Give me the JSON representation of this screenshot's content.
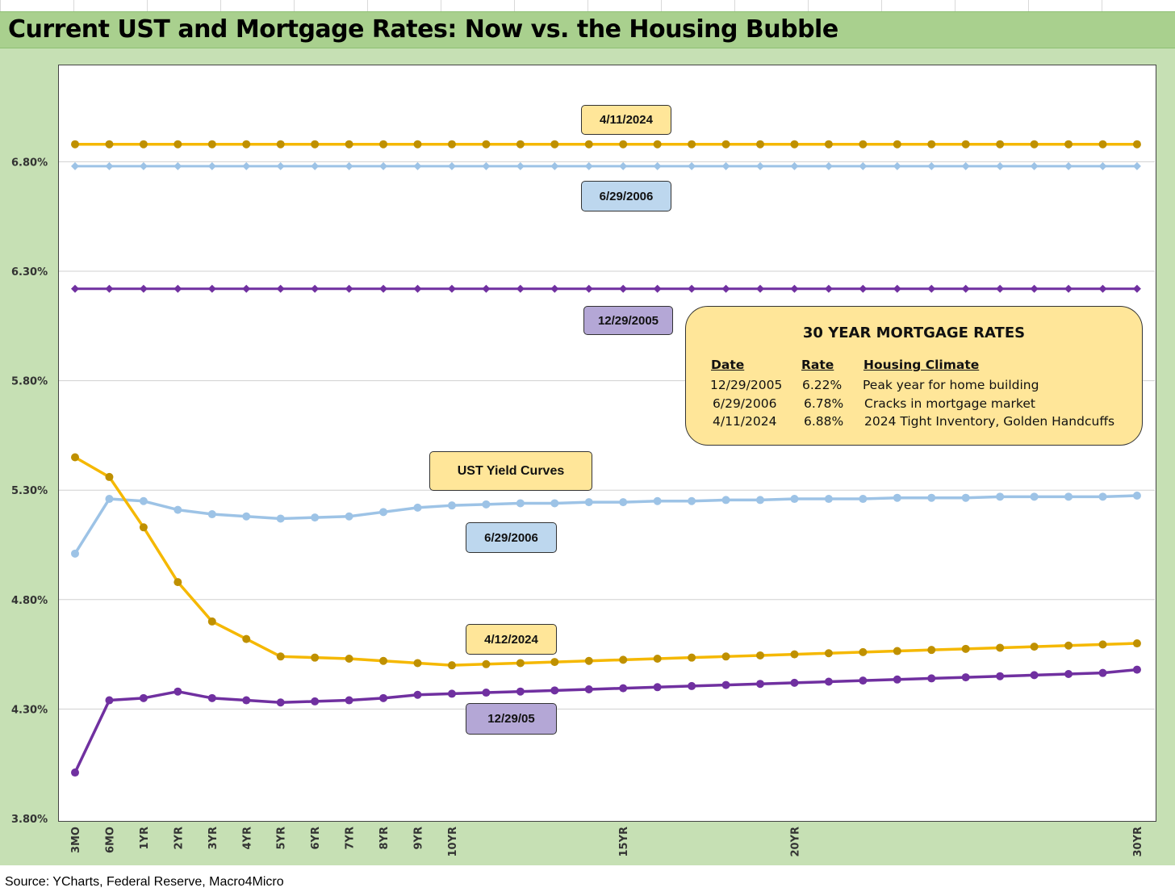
{
  "title": "Current UST and Mortgage Rates: Now vs. the Housing Bubble",
  "source": "Source: YCharts, Federal Reserve, Macro4Micro",
  "colors": {
    "title_bar": "#a9d08e",
    "panel": "#c6e0b4",
    "gold": "#f5b800",
    "gold_marker": "#bf9000",
    "light_blue": "#9dc3e6",
    "purple": "#7030a0"
  },
  "callouts": {
    "mortgage_2024": "4/11/2024",
    "mortgage_2006": "6/29/2006",
    "mortgage_2005": "12/29/2005",
    "ust_title": "UST Yield Curves",
    "ust_2006": "6/29/2006",
    "ust_2024": "4/12/2024",
    "ust_2005": "12/29/05"
  },
  "mortgage_table": {
    "title": "30 YEAR MORTGAGE RATES",
    "headers": [
      "Date",
      "Rate",
      "Housing Climate"
    ],
    "rows": [
      [
        "12/29/2005",
        "6.22%",
        "Peak year for home building"
      ],
      [
        "6/29/2006",
        "6.78%",
        "Cracks in mortgage market"
      ],
      [
        "4/11/2024",
        "6.88%",
        "2024 Tight Inventory, Golden Handcuffs"
      ]
    ]
  },
  "chart_data": {
    "type": "line",
    "title": "Current UST and Mortgage Rates: Now vs. the Housing Bubble",
    "x_tick_labels": [
      "3MO",
      "6MO",
      "1YR",
      "2YR",
      "3YR",
      "4YR",
      "5YR",
      "6YR",
      "7YR",
      "8YR",
      "9YR",
      "10YR",
      "15YR",
      "20YR",
      "30YR"
    ],
    "x_tick_positions": [
      0.25,
      0.5,
      1,
      2,
      3,
      4,
      5,
      6,
      7,
      8,
      9,
      10,
      15,
      20,
      30
    ],
    "x_note": "Category axis: 3MO, 6MO, then annual points 1YR..30YR (32 points per series)",
    "y_ticks": [
      "3.80%",
      "4.30%",
      "4.80%",
      "5.30%",
      "5.80%",
      "6.30%",
      "6.80%"
    ],
    "ylim": [
      3.8,
      7.25
    ],
    "grid": true,
    "series": [
      {
        "name": "4/11/2024",
        "color": "#f5b800",
        "marker_color": "#bf9000",
        "marker": "circle",
        "values": [
          6.88,
          6.88,
          6.88,
          6.88,
          6.88,
          6.88,
          6.88,
          6.88,
          6.88,
          6.88,
          6.88,
          6.88,
          6.88,
          6.88,
          6.88,
          6.88,
          6.88,
          6.88,
          6.88,
          6.88,
          6.88,
          6.88,
          6.88,
          6.88,
          6.88,
          6.88,
          6.88,
          6.88,
          6.88,
          6.88,
          6.88,
          6.88
        ]
      },
      {
        "name": "6/29/2006",
        "color": "#9dc3e6",
        "marker_color": "#9dc3e6",
        "marker": "diamond",
        "values": [
          6.78,
          6.78,
          6.78,
          6.78,
          6.78,
          6.78,
          6.78,
          6.78,
          6.78,
          6.78,
          6.78,
          6.78,
          6.78,
          6.78,
          6.78,
          6.78,
          6.78,
          6.78,
          6.78,
          6.78,
          6.78,
          6.78,
          6.78,
          6.78,
          6.78,
          6.78,
          6.78,
          6.78,
          6.78,
          6.78,
          6.78,
          6.78
        ]
      },
      {
        "name": "12/29/2005",
        "color": "#7030a0",
        "marker_color": "#7030a0",
        "marker": "diamond",
        "values": [
          6.22,
          6.22,
          6.22,
          6.22,
          6.22,
          6.22,
          6.22,
          6.22,
          6.22,
          6.22,
          6.22,
          6.22,
          6.22,
          6.22,
          6.22,
          6.22,
          6.22,
          6.22,
          6.22,
          6.22,
          6.22,
          6.22,
          6.22,
          6.22,
          6.22,
          6.22,
          6.22,
          6.22,
          6.22,
          6.22,
          6.22,
          6.22
        ]
      },
      {
        "name": "6/29/2006",
        "color": "#9dc3e6",
        "marker_color": "#9dc3e6",
        "marker": "circle",
        "values": [
          5.01,
          5.26,
          5.25,
          5.21,
          5.19,
          5.18,
          5.17,
          5.175,
          5.18,
          5.2,
          5.22,
          5.23,
          5.235,
          5.24,
          5.24,
          5.245,
          5.245,
          5.25,
          5.25,
          5.255,
          5.255,
          5.26,
          5.26,
          5.26,
          5.265,
          5.265,
          5.265,
          5.27,
          5.27,
          5.27,
          5.27,
          5.275
        ]
      },
      {
        "name": "4/12/2024",
        "color": "#f5b800",
        "marker_color": "#bf9000",
        "marker": "circle",
        "values": [
          5.45,
          5.36,
          5.13,
          4.88,
          4.7,
          4.62,
          4.54,
          4.535,
          4.53,
          4.52,
          4.51,
          4.5,
          4.505,
          4.51,
          4.515,
          4.52,
          4.525,
          4.53,
          4.535,
          4.54,
          4.545,
          4.55,
          4.555,
          4.56,
          4.565,
          4.57,
          4.575,
          4.58,
          4.585,
          4.59,
          4.595,
          4.6
        ]
      },
      {
        "name": "12/29/05",
        "color": "#7030a0",
        "marker_color": "#7030a0",
        "marker": "circle",
        "values": [
          4.01,
          4.34,
          4.35,
          4.38,
          4.35,
          4.34,
          4.33,
          4.335,
          4.34,
          4.35,
          4.365,
          4.37,
          4.375,
          4.38,
          4.385,
          4.39,
          4.395,
          4.4,
          4.405,
          4.41,
          4.415,
          4.42,
          4.425,
          4.43,
          4.435,
          4.44,
          4.445,
          4.45,
          4.455,
          4.46,
          4.465,
          4.48
        ]
      }
    ]
  }
}
